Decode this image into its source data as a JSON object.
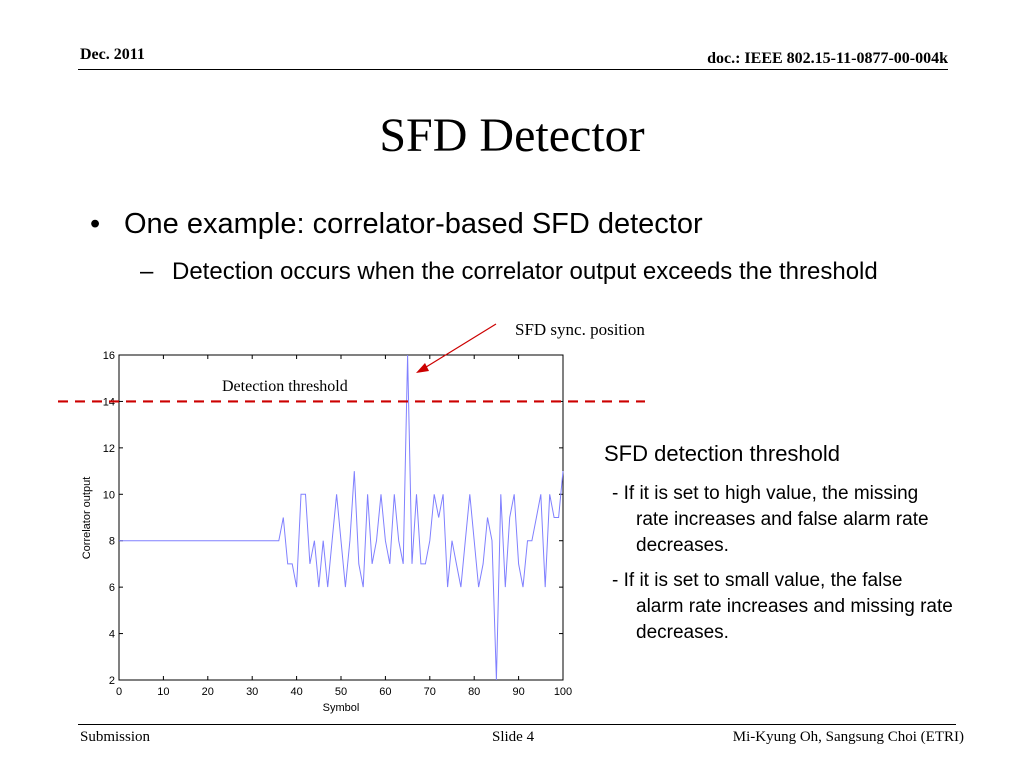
{
  "header": {
    "date": "Dec. 2011",
    "doc": "doc.: IEEE 802.15-11-0877-00-004k"
  },
  "title": "SFD Detector",
  "bullets": {
    "main": "One example: correlator-based SFD detector",
    "sub": "Detection occurs when the correlator output exceeds the threshold"
  },
  "annotations": {
    "sync_position": "SFD sync. position",
    "detection_threshold": "Detection threshold"
  },
  "side_text": {
    "heading": "SFD detection threshold",
    "para1_first": "- If it is set to high value, the missing",
    "para1_rest": "rate increases and false alarm rate decreases.",
    "para2_first": "- If it is set to small value, the false",
    "para2_rest": "alarm rate increases and missing rate decreases."
  },
  "footer": {
    "left": "Submission",
    "center": "Slide 4",
    "right": "Mi-Kyung Oh, Sangsung Choi (ETRI)"
  },
  "colors": {
    "series": "#8080ff",
    "threshold": "#cc0000",
    "arrow": "#cc0000"
  },
  "chart_data": {
    "type": "line",
    "xlabel": "Symbol",
    "ylabel": "Correlator output",
    "xlim": [
      0,
      100
    ],
    "ylim": [
      2,
      16
    ],
    "xticks": [
      0,
      10,
      20,
      30,
      40,
      50,
      60,
      70,
      80,
      90,
      100
    ],
    "yticks": [
      2,
      4,
      6,
      8,
      10,
      12,
      14,
      16
    ],
    "threshold": 14,
    "sync_position": 65,
    "x": [
      0,
      1,
      2,
      3,
      4,
      5,
      6,
      7,
      8,
      9,
      10,
      11,
      12,
      13,
      14,
      15,
      16,
      17,
      18,
      19,
      20,
      21,
      22,
      23,
      24,
      25,
      26,
      27,
      28,
      29,
      30,
      31,
      32,
      33,
      34,
      35,
      36,
      37,
      38,
      39,
      40,
      41,
      42,
      43,
      44,
      45,
      46,
      47,
      48,
      49,
      50,
      51,
      52,
      53,
      54,
      55,
      56,
      57,
      58,
      59,
      60,
      61,
      62,
      63,
      64,
      65,
      66,
      67,
      68,
      69,
      70,
      71,
      72,
      73,
      74,
      75,
      76,
      77,
      78,
      79,
      80,
      81,
      82,
      83,
      84,
      85,
      86,
      87,
      88,
      89,
      90,
      91,
      92,
      93,
      94,
      95,
      96,
      97,
      98,
      99,
      100
    ],
    "y": [
      8,
      8,
      8,
      8,
      8,
      8,
      8,
      8,
      8,
      8,
      8,
      8,
      8,
      8,
      8,
      8,
      8,
      8,
      8,
      8,
      8,
      8,
      8,
      8,
      8,
      8,
      8,
      8,
      8,
      8,
      8,
      8,
      8,
      8,
      8,
      8,
      8,
      9,
      7,
      7,
      6,
      10,
      10,
      7,
      8,
      6,
      8,
      6,
      8,
      10,
      8,
      6,
      8,
      11,
      7,
      6,
      10,
      7,
      8,
      10,
      8,
      7,
      10,
      8,
      7,
      16,
      7,
      10,
      7,
      7,
      8,
      10,
      9,
      10,
      6,
      8,
      7,
      6,
      8,
      10,
      8,
      6,
      7,
      9,
      8,
      2,
      10,
      6,
      9,
      10,
      7,
      6,
      8,
      8,
      9,
      10,
      6,
      10,
      9,
      9,
      11
    ]
  }
}
